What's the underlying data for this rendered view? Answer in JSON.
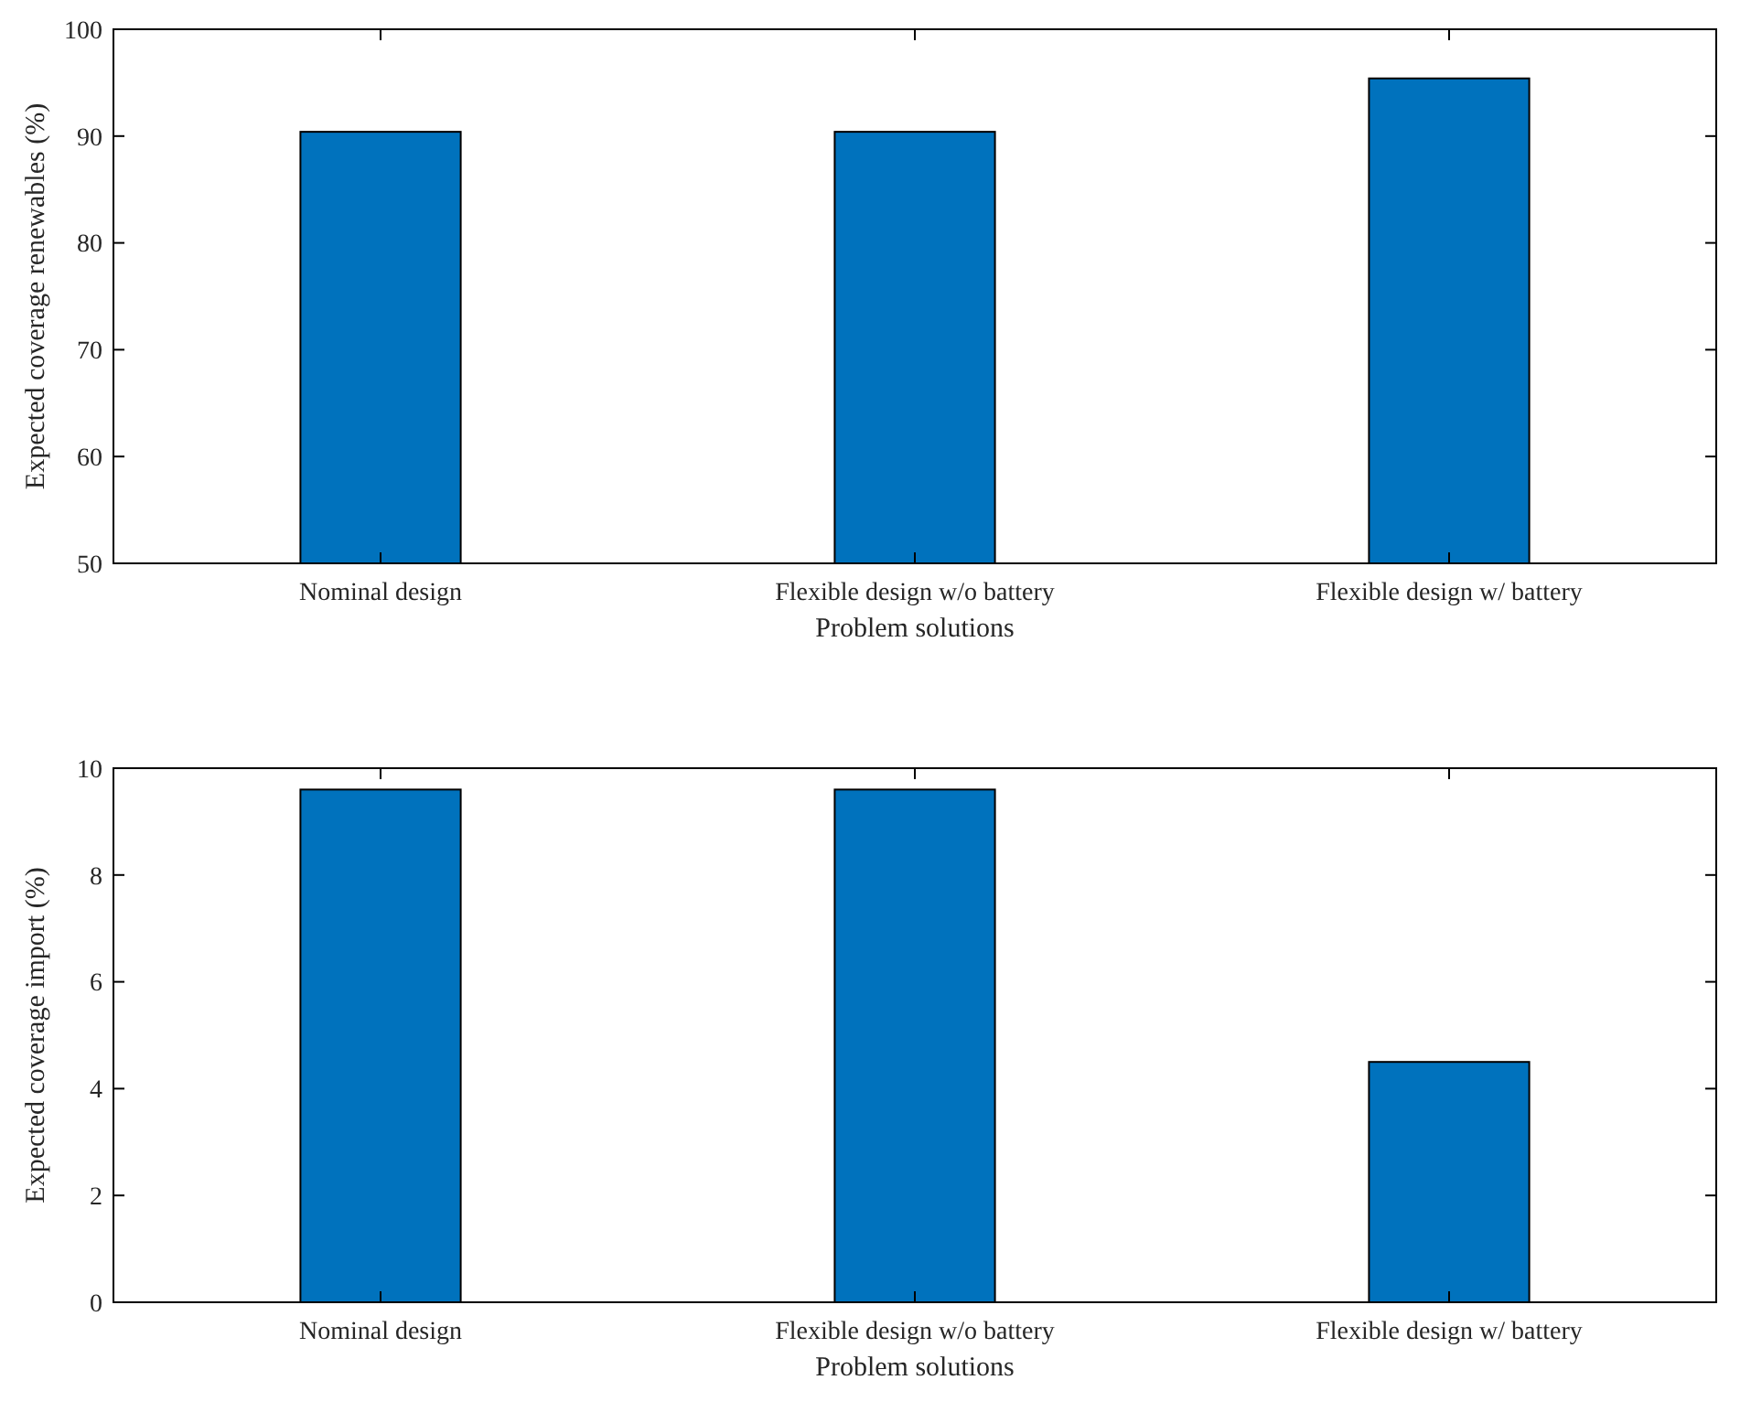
{
  "chart_data": [
    {
      "type": "bar",
      "categories": [
        "Nominal design",
        "Flexible design w/o battery",
        "Flexible design w/ battery"
      ],
      "values": [
        90.4,
        90.4,
        95.4
      ],
      "color": "#0072bd",
      "xlabel": "Problem solutions",
      "ylabel": "Expected coverage renewables (%)",
      "ylim": [
        50,
        100
      ],
      "yticks": [
        50,
        60,
        70,
        80,
        90,
        100
      ],
      "grid": false
    },
    {
      "type": "bar",
      "categories": [
        "Nominal design",
        "Flexible design w/o battery",
        "Flexible design w/ battery"
      ],
      "values": [
        9.6,
        9.6,
        4.5
      ],
      "color": "#0072bd",
      "xlabel": "Problem solutions",
      "ylabel": "Expected coverage import (%)",
      "ylim": [
        0,
        10
      ],
      "yticks": [
        0,
        2,
        4,
        6,
        8,
        10
      ],
      "grid": false
    }
  ]
}
